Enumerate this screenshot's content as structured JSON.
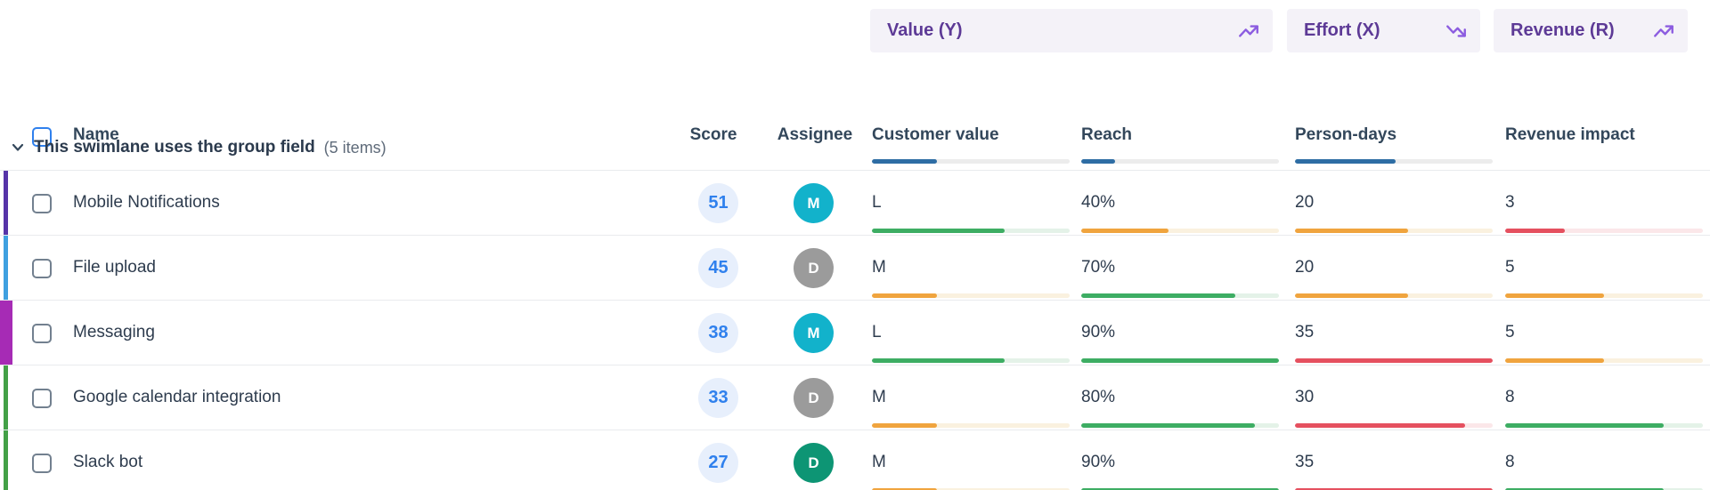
{
  "group_headers": [
    {
      "label": "Value (Y)",
      "icon": "trending-up-icon"
    },
    {
      "label": "Effort (X)",
      "icon": "trending-down-icon"
    },
    {
      "label": "Revenue (R)",
      "icon": "trending-up-icon"
    }
  ],
  "columns": {
    "name": "Name",
    "score": "Score",
    "assignee": "Assignee",
    "metrics": [
      {
        "label": "Customer value",
        "weight": {
          "fill": 33,
          "color": "blue"
        }
      },
      {
        "label": "Reach",
        "weight": {
          "fill": 17,
          "color": "blue"
        }
      },
      {
        "label": "Person-days",
        "weight": {
          "fill": 51,
          "color": "blue"
        }
      },
      {
        "label": "Revenue impact",
        "weight": {
          "fill": 0,
          "color": "blue"
        }
      }
    ]
  },
  "swimlane": {
    "title": "This swimlane uses the group field",
    "count": "(5 items)"
  },
  "rows": [
    {
      "name": "Mobile Notifications",
      "score": "51",
      "assignee": {
        "initial": "M",
        "color": "#12b2cb"
      },
      "accent": {
        "color": "#5634a8",
        "thick": false
      },
      "metrics": [
        {
          "value": "L",
          "fill": 67,
          "color": "green"
        },
        {
          "value": "40%",
          "fill": 44,
          "color": "orange"
        },
        {
          "value": "20",
          "fill": 57,
          "color": "orange"
        },
        {
          "value": "3",
          "fill": 30,
          "color": "red"
        }
      ]
    },
    {
      "name": "File upload",
      "score": "45",
      "assignee": {
        "initial": "D",
        "color": "#9b9b9b"
      },
      "accent": {
        "color": "#3fa0e0",
        "thick": false
      },
      "metrics": [
        {
          "value": "M",
          "fill": 33,
          "color": "orange"
        },
        {
          "value": "70%",
          "fill": 78,
          "color": "green"
        },
        {
          "value": "20",
          "fill": 57,
          "color": "orange"
        },
        {
          "value": "5",
          "fill": 50,
          "color": "orange"
        }
      ]
    },
    {
      "name": "Messaging",
      "score": "38",
      "assignee": {
        "initial": "M",
        "color": "#12b2cb"
      },
      "accent": {
        "color": "#a62bb5",
        "thick": true
      },
      "metrics": [
        {
          "value": "L",
          "fill": 67,
          "color": "green"
        },
        {
          "value": "90%",
          "fill": 100,
          "color": "green"
        },
        {
          "value": "35",
          "fill": 100,
          "color": "red"
        },
        {
          "value": "5",
          "fill": 50,
          "color": "orange"
        }
      ]
    },
    {
      "name": "Google calendar integration",
      "score": "33",
      "assignee": {
        "initial": "D",
        "color": "#9b9b9b"
      },
      "accent": {
        "color": "#43a047",
        "thick": false
      },
      "metrics": [
        {
          "value": "M",
          "fill": 33,
          "color": "orange"
        },
        {
          "value": "80%",
          "fill": 88,
          "color": "green"
        },
        {
          "value": "30",
          "fill": 86,
          "color": "red"
        },
        {
          "value": "8",
          "fill": 80,
          "color": "green"
        }
      ]
    },
    {
      "name": "Slack bot",
      "score": "27",
      "assignee": {
        "initial": "D",
        "color": "#0d9574"
      },
      "accent": {
        "color": "#43a047",
        "thick": false
      },
      "metrics": [
        {
          "value": "M",
          "fill": 33,
          "color": "orange"
        },
        {
          "value": "90%",
          "fill": 100,
          "color": "green"
        },
        {
          "value": "35",
          "fill": 100,
          "color": "red"
        },
        {
          "value": "8",
          "fill": 80,
          "color": "green"
        }
      ]
    }
  ],
  "colors": {
    "group_header_bg": "#f4f2f8",
    "group_header_text": "#5d3a96",
    "trend_icon": "#8c5ce0",
    "score_badge_bg": "#e7effc",
    "score_badge_text": "#2f80ed",
    "bar_green": "#3dad63",
    "bar_orange": "#f0a43e",
    "bar_red": "#e5505f",
    "bar_header_blue": "#2e6da4"
  }
}
